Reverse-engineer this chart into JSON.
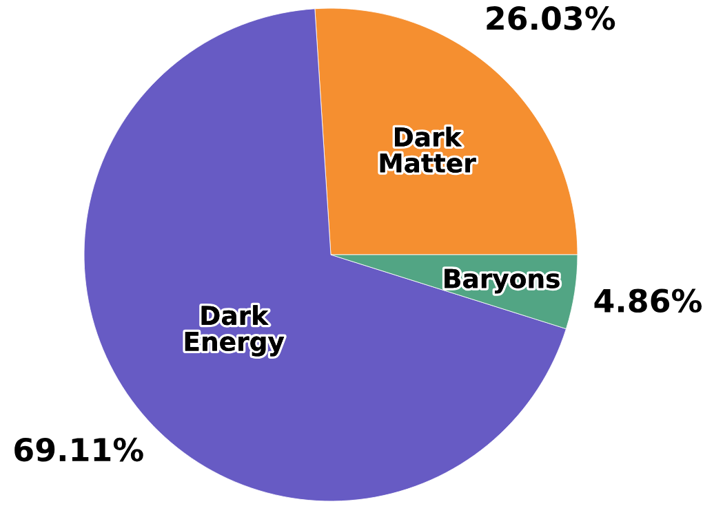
{
  "chart_data": {
    "type": "pie",
    "categories": [
      "Dark Matter",
      "Dark Energy",
      "Baryons"
    ],
    "values": [
      26.03,
      69.11,
      4.86
    ],
    "colors": [
      "#f58f30",
      "#675bc4",
      "#52a584"
    ],
    "value_labels": [
      "26.03%",
      "69.11%",
      "4.86%"
    ]
  }
}
